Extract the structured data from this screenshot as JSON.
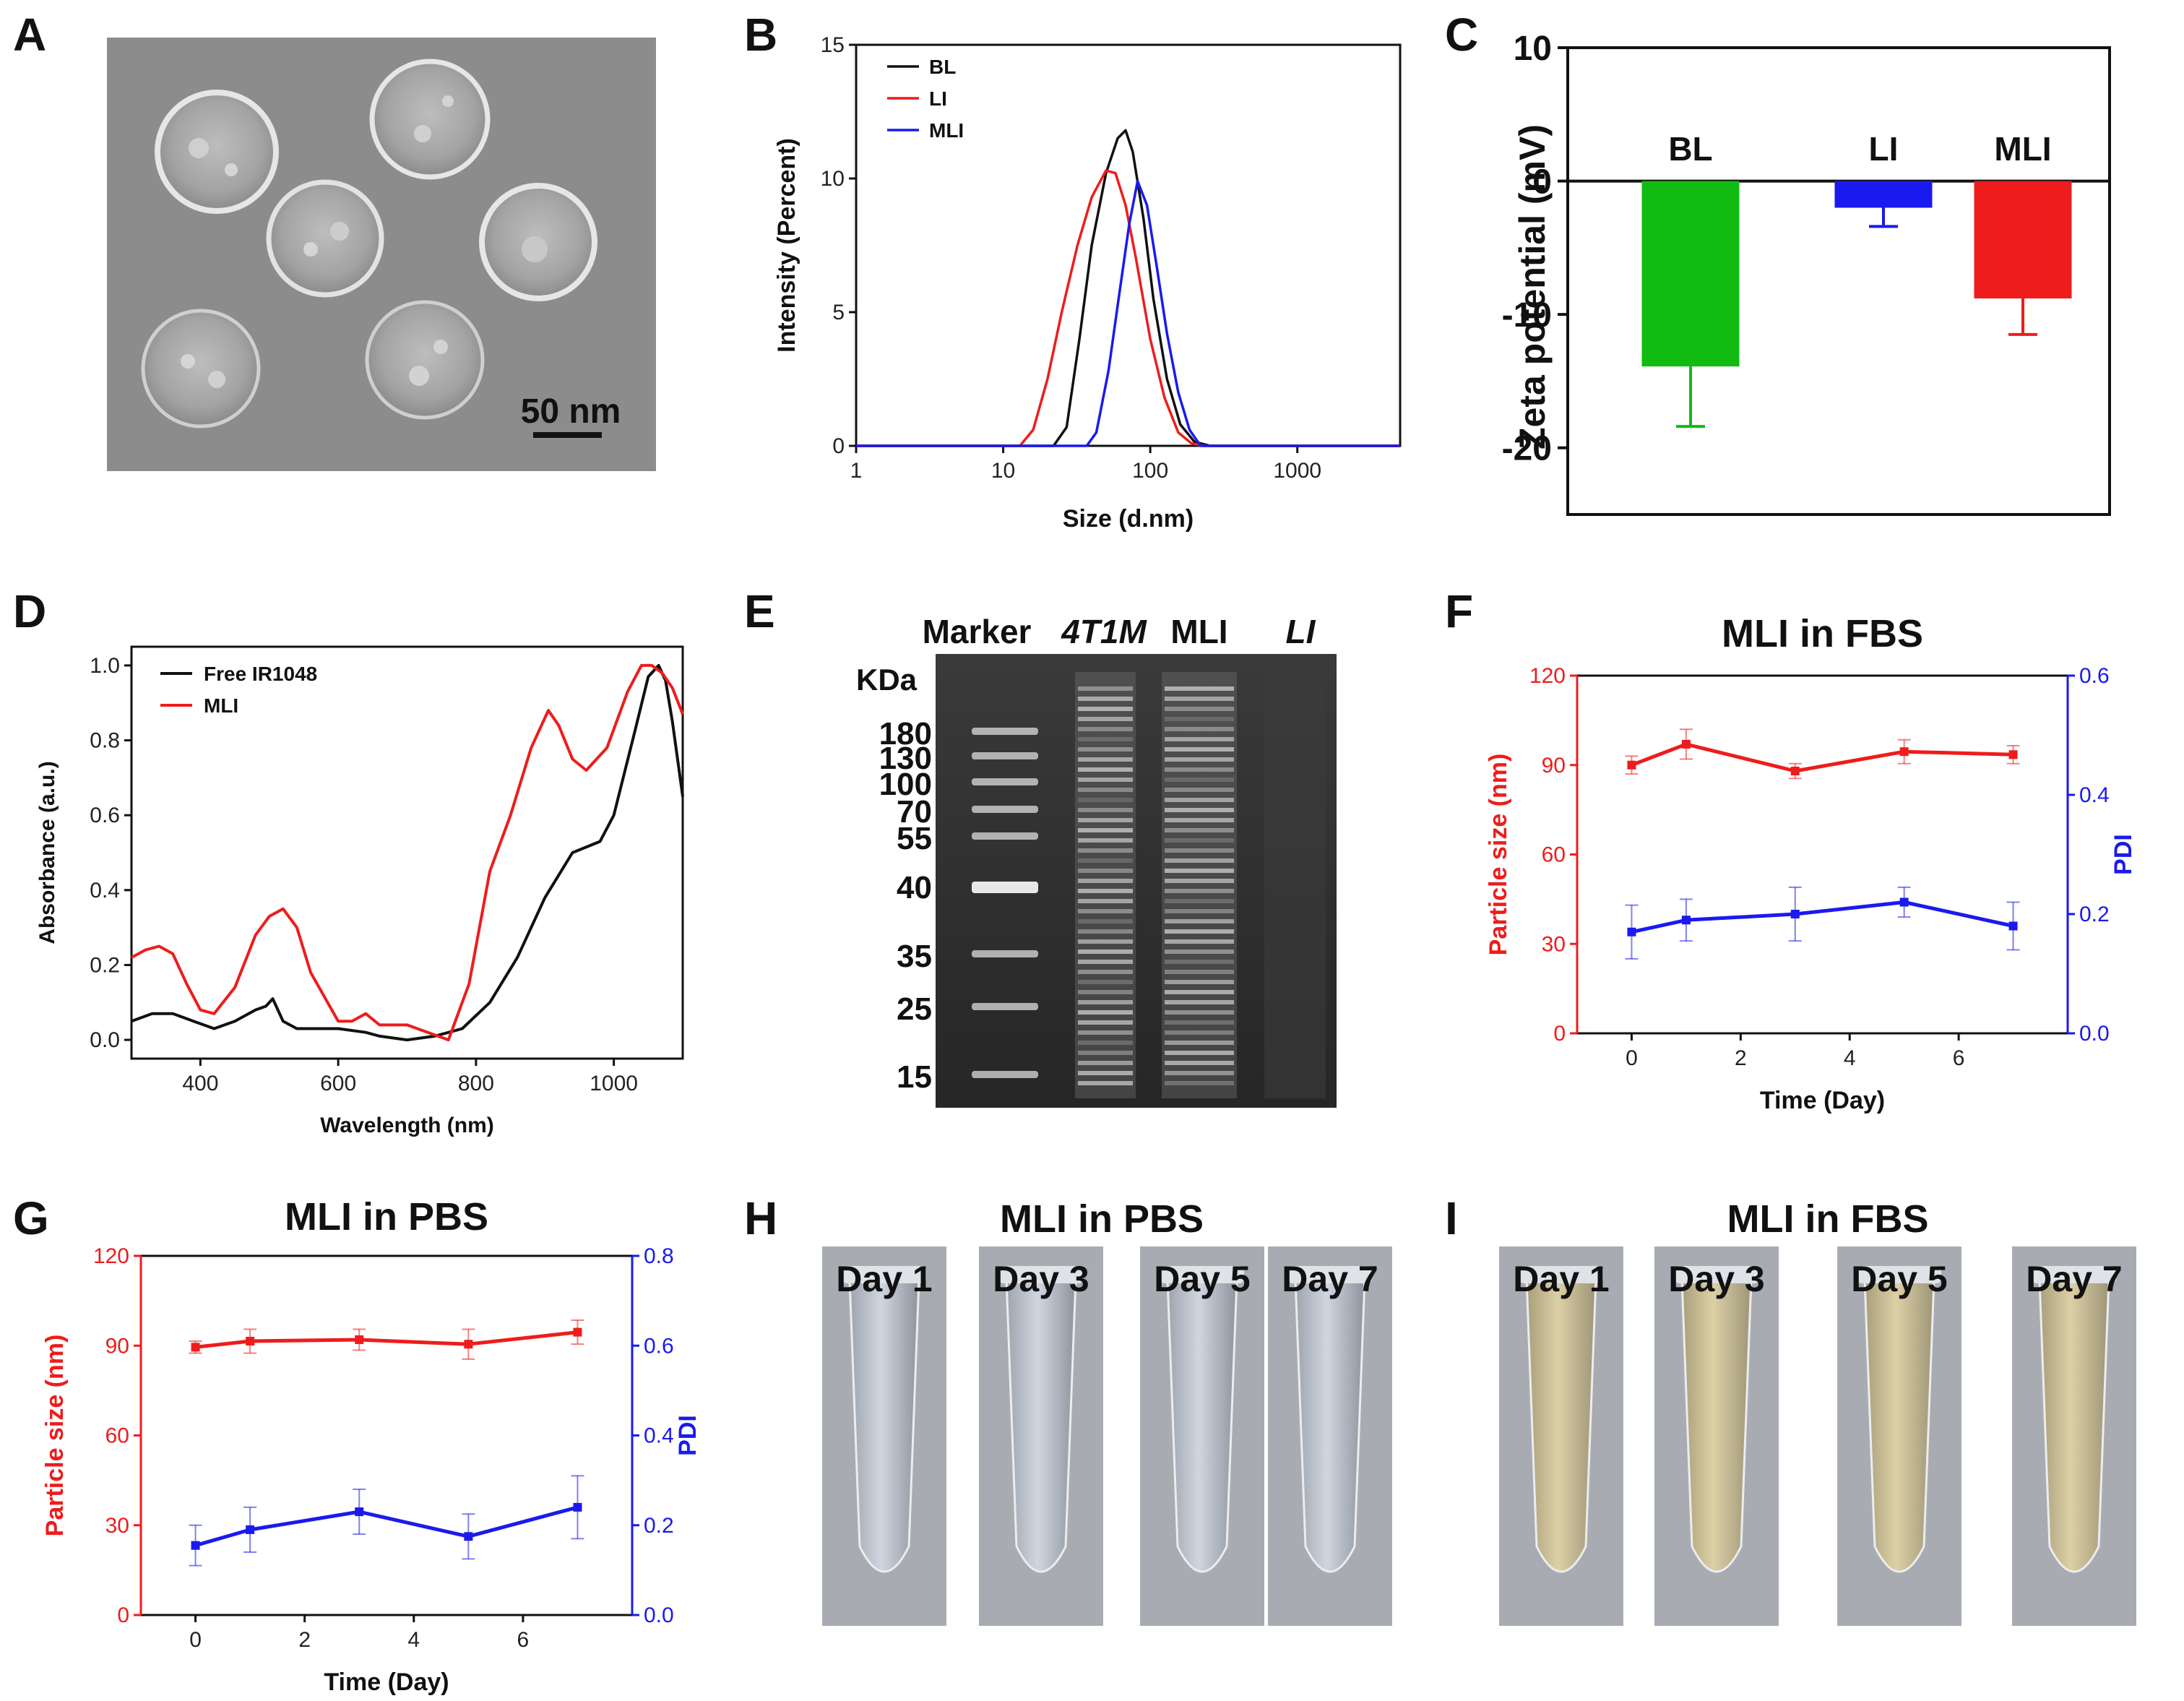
{
  "panel_letters": [
    "A",
    "B",
    "C",
    "D",
    "E",
    "F",
    "G",
    "H",
    "I"
  ],
  "panelA": {
    "scale_bar_label": "50 nm"
  },
  "panelH": {
    "title": "MLI in PBS",
    "day_labels": [
      "Day 1",
      "Day 3",
      "Day 5",
      "Day 7"
    ]
  },
  "panelI": {
    "title": "MLI in FBS",
    "day_labels": [
      "Day 1",
      "Day 3",
      "Day 5",
      "Day 7"
    ]
  },
  "panelE": {
    "header": [
      "Marker",
      "4T1M",
      "MLI",
      "LI"
    ],
    "kda_label": "KDa",
    "markers": [
      "180",
      "130",
      "100",
      "70",
      "55",
      "40",
      "35",
      "25",
      "15"
    ]
  },
  "colors": {
    "black": "#111111",
    "red": "#ee1c1c",
    "blue": "#1a1aee",
    "green": "#11bb11"
  },
  "chart_data": [
    {
      "id": "B",
      "type": "line",
      "xlabel": "Size (d.nm)",
      "ylabel": "Intensity (Percent)",
      "xscale": "log",
      "xlim": [
        1,
        5000
      ],
      "ylim": [
        0,
        15
      ],
      "xticks": [
        1,
        10,
        100,
        1000
      ],
      "xtick_labels": [
        "1",
        "10",
        "100",
        "1000"
      ],
      "yticks": [
        0,
        5,
        10,
        15
      ],
      "ytick_labels": [
        "0",
        "5",
        "10",
        "15"
      ],
      "legend": "top-left",
      "series": [
        {
          "name": "BL",
          "color": "#111111",
          "x": [
            1,
            22,
            27,
            33,
            40,
            50,
            60,
            68,
            76,
            90,
            105,
            130,
            160,
            200,
            255,
            5000
          ],
          "y": [
            0,
            0,
            0.7,
            4.0,
            7.5,
            10.2,
            11.5,
            11.8,
            11.0,
            8.5,
            5.5,
            2.5,
            0.8,
            0.15,
            0,
            0
          ]
        },
        {
          "name": "LI",
          "color": "#ee1c1c",
          "x": [
            1,
            13,
            16,
            20,
            25,
            32,
            40,
            50,
            58,
            68,
            80,
            100,
            125,
            155,
            190,
            230,
            5000
          ],
          "y": [
            0,
            0,
            0.6,
            2.5,
            5.0,
            7.5,
            9.3,
            10.3,
            10.2,
            9.0,
            7.0,
            4.0,
            1.8,
            0.5,
            0.1,
            0,
            0
          ]
        },
        {
          "name": "MLI",
          "color": "#1a1aee",
          "x": [
            1,
            37,
            43,
            52,
            62,
            72,
            82,
            95,
            110,
            130,
            155,
            185,
            220,
            5000
          ],
          "y": [
            0,
            0,
            0.5,
            2.8,
            5.8,
            8.3,
            9.9,
            9.0,
            6.8,
            4.2,
            2.0,
            0.6,
            0,
            0
          ]
        }
      ]
    },
    {
      "id": "C",
      "type": "bar",
      "ylabel": "Zeta potential (mV)",
      "ylim": [
        -25,
        10
      ],
      "yticks": [
        10,
        0,
        -10,
        -20
      ],
      "ytick_labels": [
        "10",
        "0",
        "-10",
        "-20"
      ],
      "categories": [
        "BL",
        "LI",
        "MLI"
      ],
      "values": [
        -13.9,
        -2.0,
        -8.8
      ],
      "errors": [
        4.5,
        1.4,
        2.7
      ],
      "colors": [
        "#11bb11",
        "#1a1aee",
        "#ee1c1c"
      ]
    },
    {
      "id": "D",
      "type": "line",
      "xlabel": "Wavelength (nm)",
      "ylabel": "Absorbance (a.u.)",
      "xlim": [
        300,
        1100
      ],
      "ylim": [
        -0.05,
        1.05
      ],
      "xticks": [
        400,
        600,
        800,
        1000
      ],
      "xtick_labels": [
        "400",
        "600",
        "800",
        "1000"
      ],
      "yticks": [
        0,
        0.2,
        0.4,
        0.6,
        0.8,
        1.0
      ],
      "ytick_labels": [
        "0.0",
        "0.2",
        "0.4",
        "0.6",
        "0.8",
        "1.0"
      ],
      "legend": "top-left",
      "series": [
        {
          "name": "Free IR1048",
          "color": "#111111",
          "x": [
            300,
            330,
            360,
            390,
            420,
            450,
            480,
            495,
            505,
            520,
            540,
            560,
            600,
            640,
            660,
            700,
            740,
            780,
            820,
            860,
            900,
            940,
            980,
            1000,
            1030,
            1050,
            1065,
            1075,
            1085,
            1100
          ],
          "y": [
            0.05,
            0.07,
            0.07,
            0.05,
            0.03,
            0.05,
            0.08,
            0.09,
            0.11,
            0.05,
            0.03,
            0.03,
            0.03,
            0.02,
            0.01,
            0.0,
            0.01,
            0.03,
            0.1,
            0.22,
            0.38,
            0.5,
            0.53,
            0.6,
            0.82,
            0.97,
            1.0,
            0.96,
            0.85,
            0.65
          ]
        },
        {
          "name": "MLI",
          "color": "#ee1c1c",
          "x": [
            300,
            320,
            340,
            360,
            380,
            400,
            420,
            450,
            480,
            500,
            520,
            540,
            560,
            600,
            620,
            640,
            660,
            700,
            730,
            760,
            790,
            820,
            850,
            880,
            905,
            920,
            940,
            960,
            990,
            1020,
            1040,
            1055,
            1070,
            1085,
            1100
          ],
          "y": [
            0.22,
            0.24,
            0.25,
            0.23,
            0.15,
            0.08,
            0.07,
            0.14,
            0.28,
            0.33,
            0.35,
            0.3,
            0.18,
            0.05,
            0.05,
            0.07,
            0.04,
            0.04,
            0.02,
            0.0,
            0.15,
            0.45,
            0.6,
            0.78,
            0.88,
            0.84,
            0.75,
            0.72,
            0.78,
            0.93,
            1.0,
            1.0,
            0.98,
            0.94,
            0.87
          ]
        }
      ]
    },
    {
      "id": "F",
      "type": "line",
      "title": "MLI in FBS",
      "xlabel": "Time (Day)",
      "ylabel": "Particle size (nm)",
      "y2label": "PDI",
      "xlim": [
        -1,
        8
      ],
      "ylim": [
        0,
        120
      ],
      "y2lim": [
        0,
        0.6
      ],
      "xticks": [
        0,
        2,
        4,
        6
      ],
      "xtick_labels": [
        "0",
        "2",
        "4",
        "6"
      ],
      "yticks": [
        0,
        30,
        60,
        90,
        120
      ],
      "ytick_labels": [
        "0",
        "30",
        "60",
        "90",
        "120"
      ],
      "y2ticks": [
        0,
        0.2,
        0.4,
        0.6
      ],
      "y2tick_labels": [
        "0.0",
        "0.2",
        "0.4",
        "0.6"
      ],
      "x": [
        0,
        1,
        3,
        5,
        7
      ],
      "series": [
        {
          "name": "Particle size",
          "axis": "left",
          "color": "#ee1c1c",
          "values": [
            90,
            97,
            88,
            94.5,
            93.5
          ],
          "errors": [
            3,
            5,
            2.5,
            4,
            3
          ]
        },
        {
          "name": "PDI",
          "axis": "right",
          "color": "#1a1aee",
          "values": [
            0.17,
            0.19,
            0.2,
            0.22,
            0.18
          ],
          "errors": [
            0.045,
            0.035,
            0.045,
            0.025,
            0.04
          ]
        }
      ]
    },
    {
      "id": "G",
      "type": "line",
      "title": "MLI in PBS",
      "xlabel": "Time (Day)",
      "ylabel": "Particle size (nm)",
      "y2label": "PDI",
      "xlim": [
        -1,
        8
      ],
      "ylim": [
        0,
        120
      ],
      "y2lim": [
        0,
        0.8
      ],
      "xticks": [
        0,
        2,
        4,
        6
      ],
      "xtick_labels": [
        "0",
        "2",
        "4",
        "6"
      ],
      "yticks": [
        0,
        30,
        60,
        90,
        120
      ],
      "ytick_labels": [
        "0",
        "30",
        "60",
        "90",
        "120"
      ],
      "y2ticks": [
        0,
        0.2,
        0.4,
        0.6,
        0.8
      ],
      "y2tick_labels": [
        "0.0",
        "0.2",
        "0.4",
        "0.6",
        "0.8"
      ],
      "x": [
        0,
        1,
        3,
        5,
        7
      ],
      "series": [
        {
          "name": "Particle size",
          "axis": "left",
          "color": "#ee1c1c",
          "values": [
            89.5,
            91.5,
            92,
            90.5,
            94.5
          ],
          "errors": [
            2,
            4,
            3.5,
            5,
            4
          ]
        },
        {
          "name": "PDI",
          "axis": "right",
          "color": "#1a1aee",
          "values": [
            0.155,
            0.19,
            0.23,
            0.175,
            0.24
          ],
          "errors": [
            0.045,
            0.05,
            0.05,
            0.05,
            0.07
          ]
        }
      ]
    }
  ]
}
